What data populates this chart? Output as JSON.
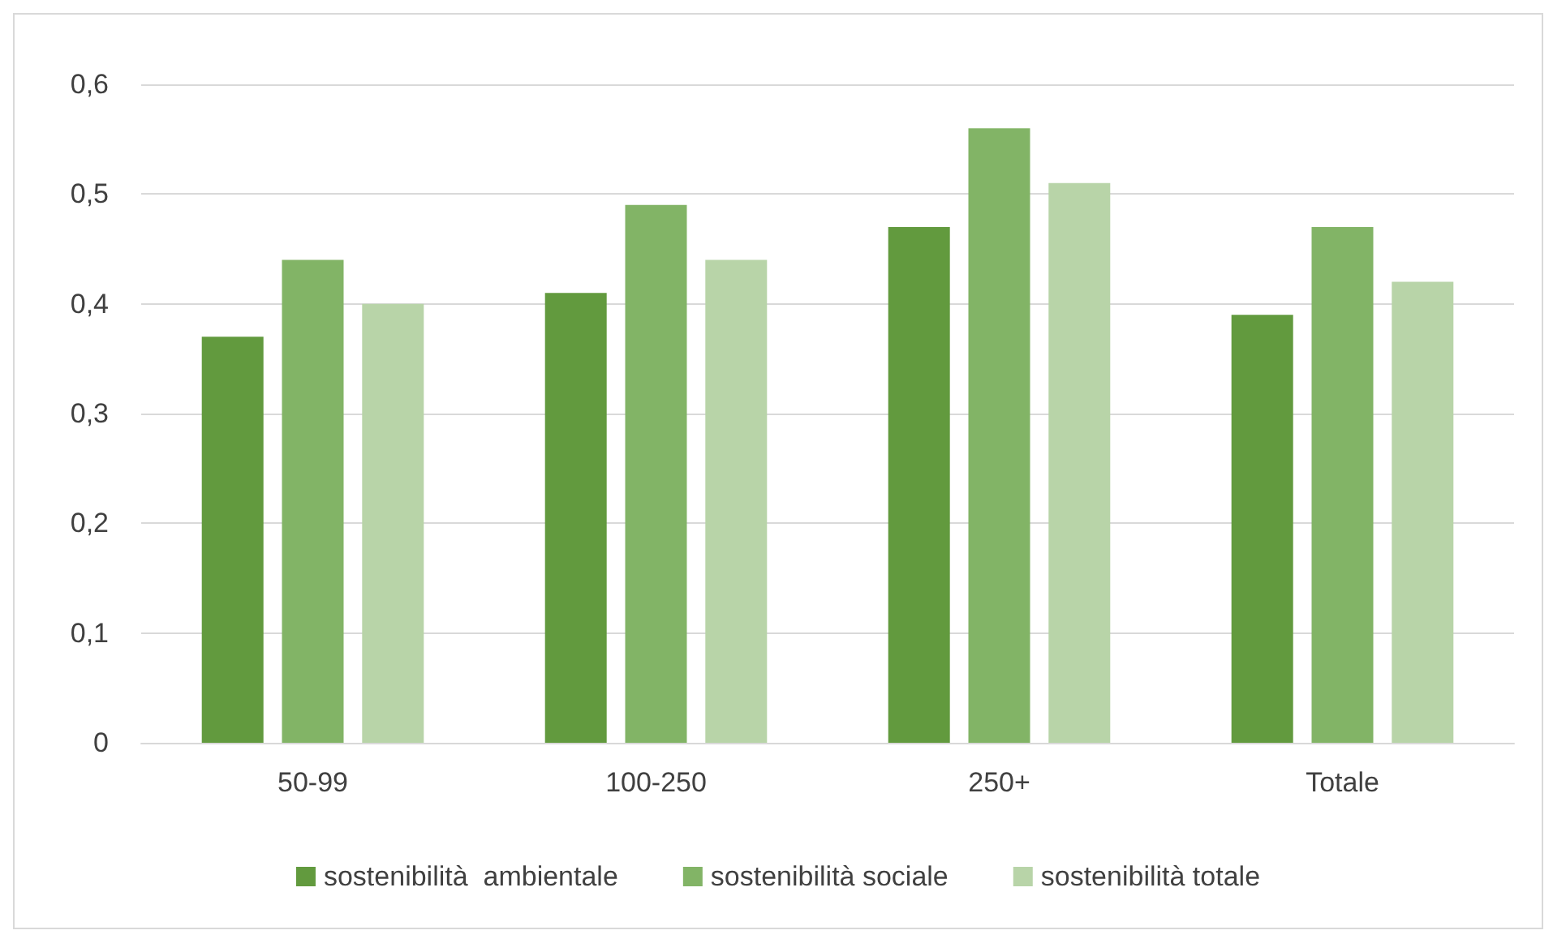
{
  "chart_data": {
    "type": "bar",
    "categories": [
      "50-99",
      "100-250",
      "250+",
      "Totale"
    ],
    "series": [
      {
        "name": "sostenibilità  ambientale",
        "color": "#629a3e",
        "values": [
          0.37,
          0.41,
          0.47,
          0.39
        ]
      },
      {
        "name": "sostenibilità sociale",
        "color": "#82b466",
        "values": [
          0.44,
          0.49,
          0.56,
          0.47
        ]
      },
      {
        "name": "sostenibilità totale",
        "color": "#b8d4a8",
        "values": [
          0.4,
          0.44,
          0.51,
          0.42
        ]
      }
    ],
    "ylim": [
      0,
      0.6
    ],
    "yticks": [
      0,
      {
        "value": 0.1,
        "label": "0,1"
      },
      {
        "value": 0.2,
        "label": "0,2"
      },
      {
        "value": 0.3,
        "label": "0,3"
      },
      {
        "value": 0.4,
        "label": "0,4"
      },
      {
        "value": 0.5,
        "label": "0,5"
      },
      {
        "value": 0.6,
        "label": "0,6"
      }
    ],
    "grid": "y",
    "legend": "bottom"
  }
}
